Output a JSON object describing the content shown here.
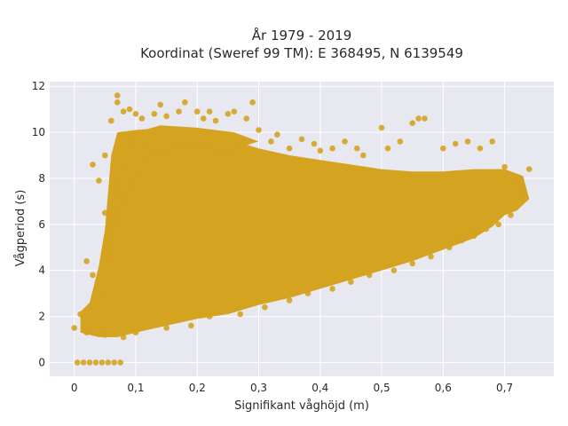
{
  "chart_data": {
    "type": "scatter",
    "title": "År 1979 - 2019",
    "subtitle": "Koordinat (Sweref 99 TM): E 368495, N 6139549",
    "xlabel": "Signifikant våghöjd (m)",
    "ylabel": "Vågperiod (s)",
    "xlim": [
      -0.04,
      0.78
    ],
    "ylim": [
      -0.6,
      12.2
    ],
    "x_ticks": [
      0,
      0.1,
      0.2,
      0.3,
      0.4,
      0.5,
      0.6,
      0.7
    ],
    "x_tick_labels": [
      "0",
      "0,1",
      "0,2",
      "0,3",
      "0,4",
      "0,5",
      "0,6",
      "0,7"
    ],
    "y_ticks": [
      0,
      2,
      4,
      6,
      8,
      10,
      12
    ],
    "y_tick_labels": [
      "0",
      "2",
      "4",
      "6",
      "8",
      "10",
      "12"
    ],
    "grid": true,
    "legend": "none",
    "colors": {
      "marker": "#d4a31f",
      "plot_background": "#e8e8f1",
      "grid": "#ffffff"
    },
    "points": [
      [
        0.0,
        1.5
      ],
      [
        0.01,
        2.1
      ],
      [
        0.02,
        1.3
      ],
      [
        0.02,
        4.4
      ],
      [
        0.03,
        3.8
      ],
      [
        0.03,
        8.6
      ],
      [
        0.04,
        2.9
      ],
      [
        0.04,
        7.9
      ],
      [
        0.05,
        1.2
      ],
      [
        0.05,
        6.5
      ],
      [
        0.05,
        9.0
      ],
      [
        0.06,
        4.6
      ],
      [
        0.06,
        10.5
      ],
      [
        0.07,
        11.6
      ],
      [
        0.07,
        11.3
      ],
      [
        0.08,
        1.1
      ],
      [
        0.08,
        10.9
      ],
      [
        0.09,
        11.0
      ],
      [
        0.1,
        1.3
      ],
      [
        0.1,
        10.8
      ],
      [
        0.11,
        10.6
      ],
      [
        0.12,
        9.5
      ],
      [
        0.13,
        10.8
      ],
      [
        0.14,
        11.2
      ],
      [
        0.15,
        1.5
      ],
      [
        0.15,
        10.7
      ],
      [
        0.17,
        10.9
      ],
      [
        0.18,
        11.3
      ],
      [
        0.19,
        1.6
      ],
      [
        0.2,
        10.9
      ],
      [
        0.21,
        10.6
      ],
      [
        0.22,
        2.0
      ],
      [
        0.22,
        10.9
      ],
      [
        0.23,
        10.5
      ],
      [
        0.25,
        10.8
      ],
      [
        0.26,
        10.9
      ],
      [
        0.27,
        2.1
      ],
      [
        0.28,
        10.6
      ],
      [
        0.29,
        11.3
      ],
      [
        0.3,
        10.1
      ],
      [
        0.31,
        2.4
      ],
      [
        0.32,
        9.6
      ],
      [
        0.33,
        9.9
      ],
      [
        0.35,
        2.7
      ],
      [
        0.35,
        9.3
      ],
      [
        0.37,
        9.7
      ],
      [
        0.38,
        3.0
      ],
      [
        0.39,
        9.5
      ],
      [
        0.4,
        9.2
      ],
      [
        0.42,
        3.2
      ],
      [
        0.42,
        9.3
      ],
      [
        0.44,
        9.6
      ],
      [
        0.45,
        3.5
      ],
      [
        0.46,
        9.3
      ],
      [
        0.47,
        9.0
      ],
      [
        0.48,
        3.8
      ],
      [
        0.5,
        10.2
      ],
      [
        0.51,
        9.3
      ],
      [
        0.52,
        4.0
      ],
      [
        0.53,
        9.6
      ],
      [
        0.55,
        4.3
      ],
      [
        0.55,
        10.4
      ],
      [
        0.56,
        10.6
      ],
      [
        0.57,
        10.6
      ],
      [
        0.58,
        4.6
      ],
      [
        0.6,
        9.3
      ],
      [
        0.61,
        5.0
      ],
      [
        0.62,
        9.5
      ],
      [
        0.63,
        5.3
      ],
      [
        0.64,
        9.6
      ],
      [
        0.65,
        5.5
      ],
      [
        0.66,
        9.3
      ],
      [
        0.67,
        5.8
      ],
      [
        0.68,
        9.6
      ],
      [
        0.69,
        6.0
      ],
      [
        0.7,
        8.5
      ],
      [
        0.71,
        6.4
      ],
      [
        0.72,
        8.0
      ],
      [
        0.73,
        7.5
      ],
      [
        0.74,
        8.4
      ]
    ]
  }
}
